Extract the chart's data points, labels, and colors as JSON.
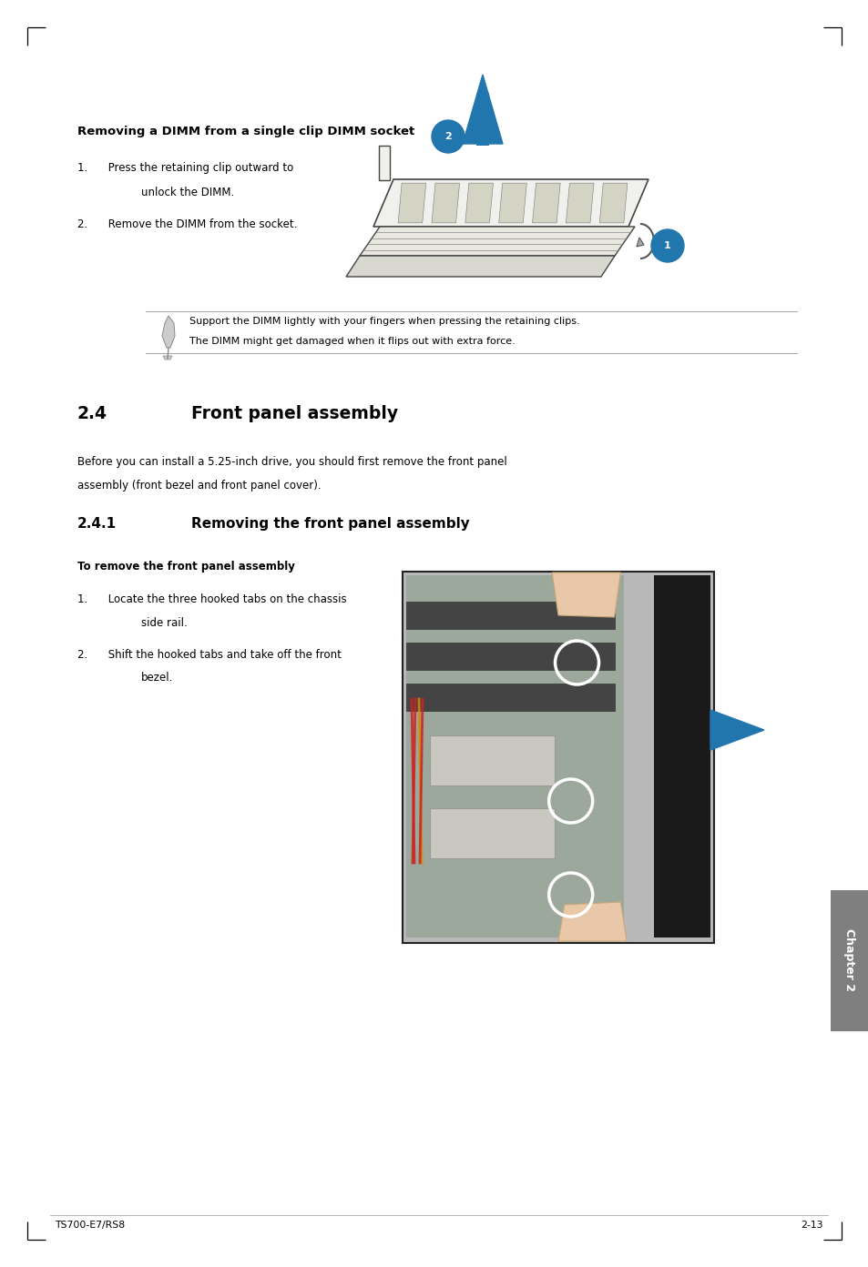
{
  "page_width": 9.54,
  "page_height": 13.92,
  "bg_color": "#ffffff",
  "section_title_dimm": "Removing a DIMM from a single clip DIMM socket",
  "note_text_line1": "Support the DIMM lightly with your fingers when pressing the retaining clips.",
  "note_text_line2": "The DIMM might get damaged when it flips out with extra force.",
  "section_24_num": "2.4",
  "section_24_title": "Front panel assembly",
  "section_24_body1": "Before you can install a 5.25-inch drive, you should first remove the front panel",
  "section_24_body2": "assembly (front bezel and front panel cover).",
  "section_241_num": "2.4.1",
  "section_241_title": "Removing the front panel assembly",
  "subsection_bold": "To remove the front panel assembly",
  "step1a": "1.      Locate the three hooked tabs on the chassis",
  "step1b": "side rail.",
  "step2a": "2.      Shift the hooked tabs and take off the front",
  "step2b": "bezel.",
  "footer_left": "TS700-E7/RS8",
  "footer_right": "2-13",
  "chapter_tab_text": "Chapter 2",
  "accent_blue": "#2176AE",
  "tab_gray": "#7F7F7F",
  "line_color": "#aaaaaa",
  "text_black": "#000000",
  "step1_dimm_a": "1.      Press the retaining clip outward to",
  "step1_dimm_b": "unlock the DIMM.",
  "step2_dimm": "2.      Remove the DIMM from the socket."
}
